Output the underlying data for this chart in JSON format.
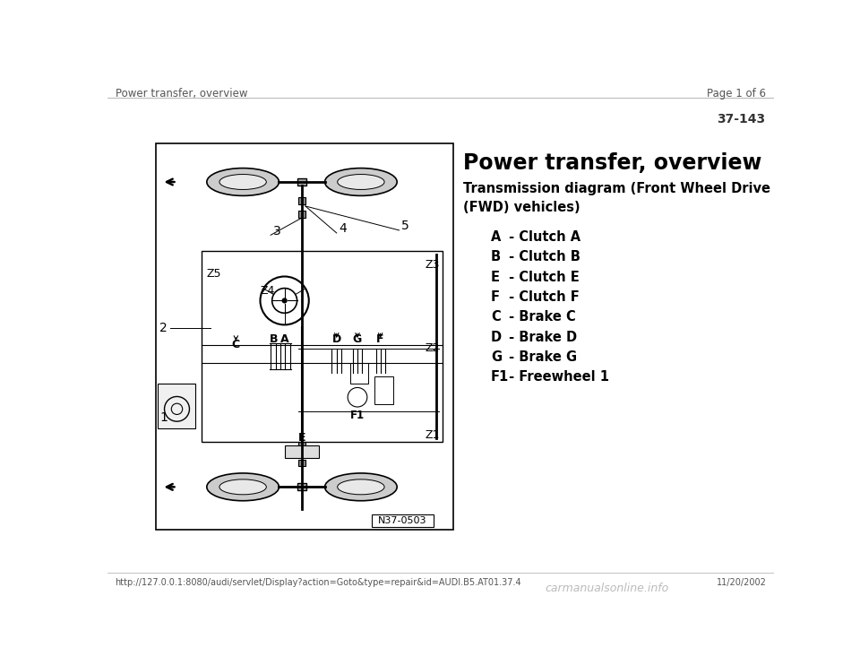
{
  "bg_color": "#ffffff",
  "page_header_left": "Power transfer, overview",
  "page_header_right": "Page 1 of 6",
  "page_number": "37-143",
  "title": "Power transfer, overview",
  "subtitle": "Transmission diagram (Front Wheel Drive\n(FWD) vehicles)",
  "legend_items": [
    [
      "A",
      " - Clutch A"
    ],
    [
      "B",
      " - Clutch B"
    ],
    [
      "E",
      " - Clutch E"
    ],
    [
      "F",
      " - Clutch F"
    ],
    [
      "C",
      " - Brake C"
    ],
    [
      "D",
      " - Brake D"
    ],
    [
      "G",
      " - Brake G"
    ],
    [
      "F1",
      " - Freewheel 1"
    ]
  ],
  "diagram_label": "N37-0503",
  "footer_url": "http://127.0.0.1:8080/audi/servlet/Display?action=Goto&type=repair&id=AUDI.B5.AT01.37.4",
  "footer_date": "11/20/2002",
  "footer_watermark": "carmanualsonline.info"
}
